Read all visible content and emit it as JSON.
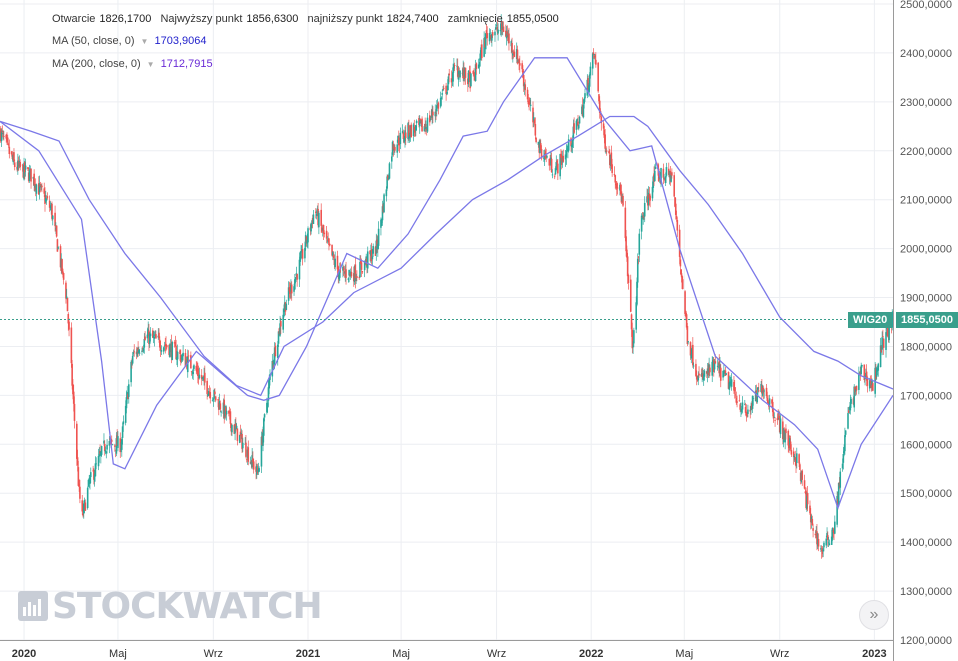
{
  "legend": {
    "open_label": "Otwarcie",
    "open_value": "1826,1700",
    "high_label": "Najwyższy punkt",
    "high_value": "1856,6300",
    "low_label": "najniższy punkt",
    "low_value": "1824,7400",
    "close_label": "zamknięcie",
    "close_value": "1855,0500",
    "ma50_label": "MA (50, close, 0)",
    "ma50_value": "1703,9064",
    "ma200_label": "MA (200, close, 0)",
    "ma200_value": "1712,7915"
  },
  "price_badge": {
    "symbol": "WIG20",
    "value": "1855,0500"
  },
  "watermark": "STOCKWATCH",
  "nav_button_glyph": "»",
  "icons": {
    "nav": "double-chevron-right-icon",
    "logo": "stockwatch-logo-icon"
  },
  "colors": {
    "up": "#26a69a",
    "down": "#ef5350",
    "ma": "#7b78e8",
    "last_price": "#3a9f8c",
    "ma50_value": "#2222cc",
    "ma200_value": "#6a2bd6"
  },
  "chart_data": {
    "type": "candlestick",
    "symbol": "WIG20",
    "ylim": [
      1200,
      2500
    ],
    "y_ticks": [
      "1200,0000",
      "1300,0000",
      "1400,0000",
      "1500,0000",
      "1600,0000",
      "1700,0000",
      "1800,0000",
      "1900,0000",
      "2000,0000",
      "2100,0000",
      "2200,0000",
      "2300,0000",
      "2400,0000",
      "2500,0000"
    ],
    "x_ticks": [
      "2020",
      "Maj",
      "Wrz",
      "2021",
      "Maj",
      "Wrz",
      "2022",
      "Maj",
      "Wrz",
      "2023"
    ],
    "x_range": [
      "2019-12-01",
      "2023-01-25"
    ],
    "last_price": 1855.05,
    "close_series": {
      "name": "WIG20",
      "x": [
        "2019-12-01",
        "2019-12-20",
        "2020-01-10",
        "2020-02-05",
        "2020-02-25",
        "2020-03-12",
        "2020-03-16",
        "2020-03-25",
        "2020-04-15",
        "2020-05-05",
        "2020-05-20",
        "2020-06-08",
        "2020-07-05",
        "2020-08-05",
        "2020-09-10",
        "2020-10-10",
        "2020-10-28",
        "2020-11-15",
        "2020-12-01",
        "2020-12-20",
        "2021-01-10",
        "2021-01-25",
        "2021-02-10",
        "2021-03-05",
        "2021-03-30",
        "2021-04-20",
        "2021-05-10",
        "2021-06-01",
        "2021-06-20",
        "2021-07-10",
        "2021-08-01",
        "2021-08-20",
        "2021-09-10",
        "2021-10-01",
        "2021-10-25",
        "2021-11-15",
        "2021-12-01",
        "2021-12-20",
        "2022-01-05",
        "2022-01-15",
        "2022-02-10",
        "2022-02-24",
        "2022-03-05",
        "2022-03-25",
        "2022-04-15",
        "2022-05-05",
        "2022-05-20",
        "2022-06-10",
        "2022-06-30",
        "2022-07-20",
        "2022-08-10",
        "2022-09-01",
        "2022-09-25",
        "2022-10-10",
        "2022-10-25",
        "2022-11-10",
        "2022-11-28",
        "2022-12-15",
        "2022-12-30",
        "2023-01-10",
        "2023-01-25"
      ],
      "values": [
        2240,
        2170,
        2150,
        2080,
        1900,
        1500,
        1450,
        1520,
        1600,
        1600,
        1780,
        1820,
        1800,
        1760,
        1680,
        1600,
        1540,
        1760,
        1880,
        1960,
        2080,
        2010,
        1950,
        1950,
        2000,
        2210,
        2240,
        2250,
        2300,
        2370,
        2340,
        2440,
        2450,
        2380,
        2210,
        2160,
        2200,
        2280,
        2400,
        2240,
        2100,
        1790,
        2050,
        2150,
        2150,
        1820,
        1730,
        1760,
        1720,
        1660,
        1720,
        1640,
        1560,
        1450,
        1380,
        1430,
        1660,
        1750,
        1720,
        1800,
        1855
      ]
    },
    "ma50": {
      "name": "MA (50, close, 0)",
      "x": [
        "2019-12-01",
        "2020-01-20",
        "2020-03-15",
        "2020-04-10",
        "2020-04-25",
        "2020-05-10",
        "2020-06-20",
        "2020-08-10",
        "2020-09-15",
        "2020-10-15",
        "2020-11-05",
        "2020-11-25",
        "2020-12-30",
        "2021-02-20",
        "2021-04-01",
        "2021-05-10",
        "2021-06-20",
        "2021-07-20",
        "2021-08-20",
        "2021-09-10",
        "2021-10-20",
        "2021-12-01",
        "2022-01-20",
        "2022-02-20",
        "2022-03-20",
        "2022-04-25",
        "2022-06-10",
        "2022-08-10",
        "2022-09-20",
        "2022-10-20",
        "2022-11-15",
        "2022-12-15",
        "2023-01-25"
      ],
      "values": [
        2260,
        2200,
        2060,
        1770,
        1560,
        1550,
        1680,
        1790,
        1740,
        1700,
        1690,
        1700,
        1800,
        1990,
        1960,
        2030,
        2140,
        2230,
        2240,
        2300,
        2390,
        2390,
        2260,
        2200,
        2210,
        2000,
        1780,
        1690,
        1640,
        1590,
        1470,
        1600,
        1700
      ]
    },
    "ma200": {
      "name": "MA (200, close, 0)",
      "x": [
        "2019-12-01",
        "2020-01-10",
        "2020-02-15",
        "2020-03-25",
        "2020-05-10",
        "2020-06-25",
        "2020-08-20",
        "2020-10-01",
        "2020-11-01",
        "2020-12-01",
        "2021-01-20",
        "2021-03-01",
        "2021-05-01",
        "2021-06-15",
        "2021-08-01",
        "2021-09-15",
        "2021-11-01",
        "2021-12-15",
        "2022-01-25",
        "2022-02-25",
        "2022-03-15",
        "2022-04-25",
        "2022-06-01",
        "2022-07-15",
        "2022-09-01",
        "2022-10-15",
        "2022-11-15",
        "2022-12-15",
        "2023-01-25"
      ],
      "values": [
        2260,
        2240,
        2220,
        2100,
        1990,
        1900,
        1780,
        1720,
        1700,
        1800,
        1850,
        1910,
        1960,
        2030,
        2100,
        2140,
        2190,
        2230,
        2270,
        2270,
        2250,
        2160,
        2090,
        1990,
        1860,
        1790,
        1770,
        1740,
        1713
      ]
    }
  }
}
